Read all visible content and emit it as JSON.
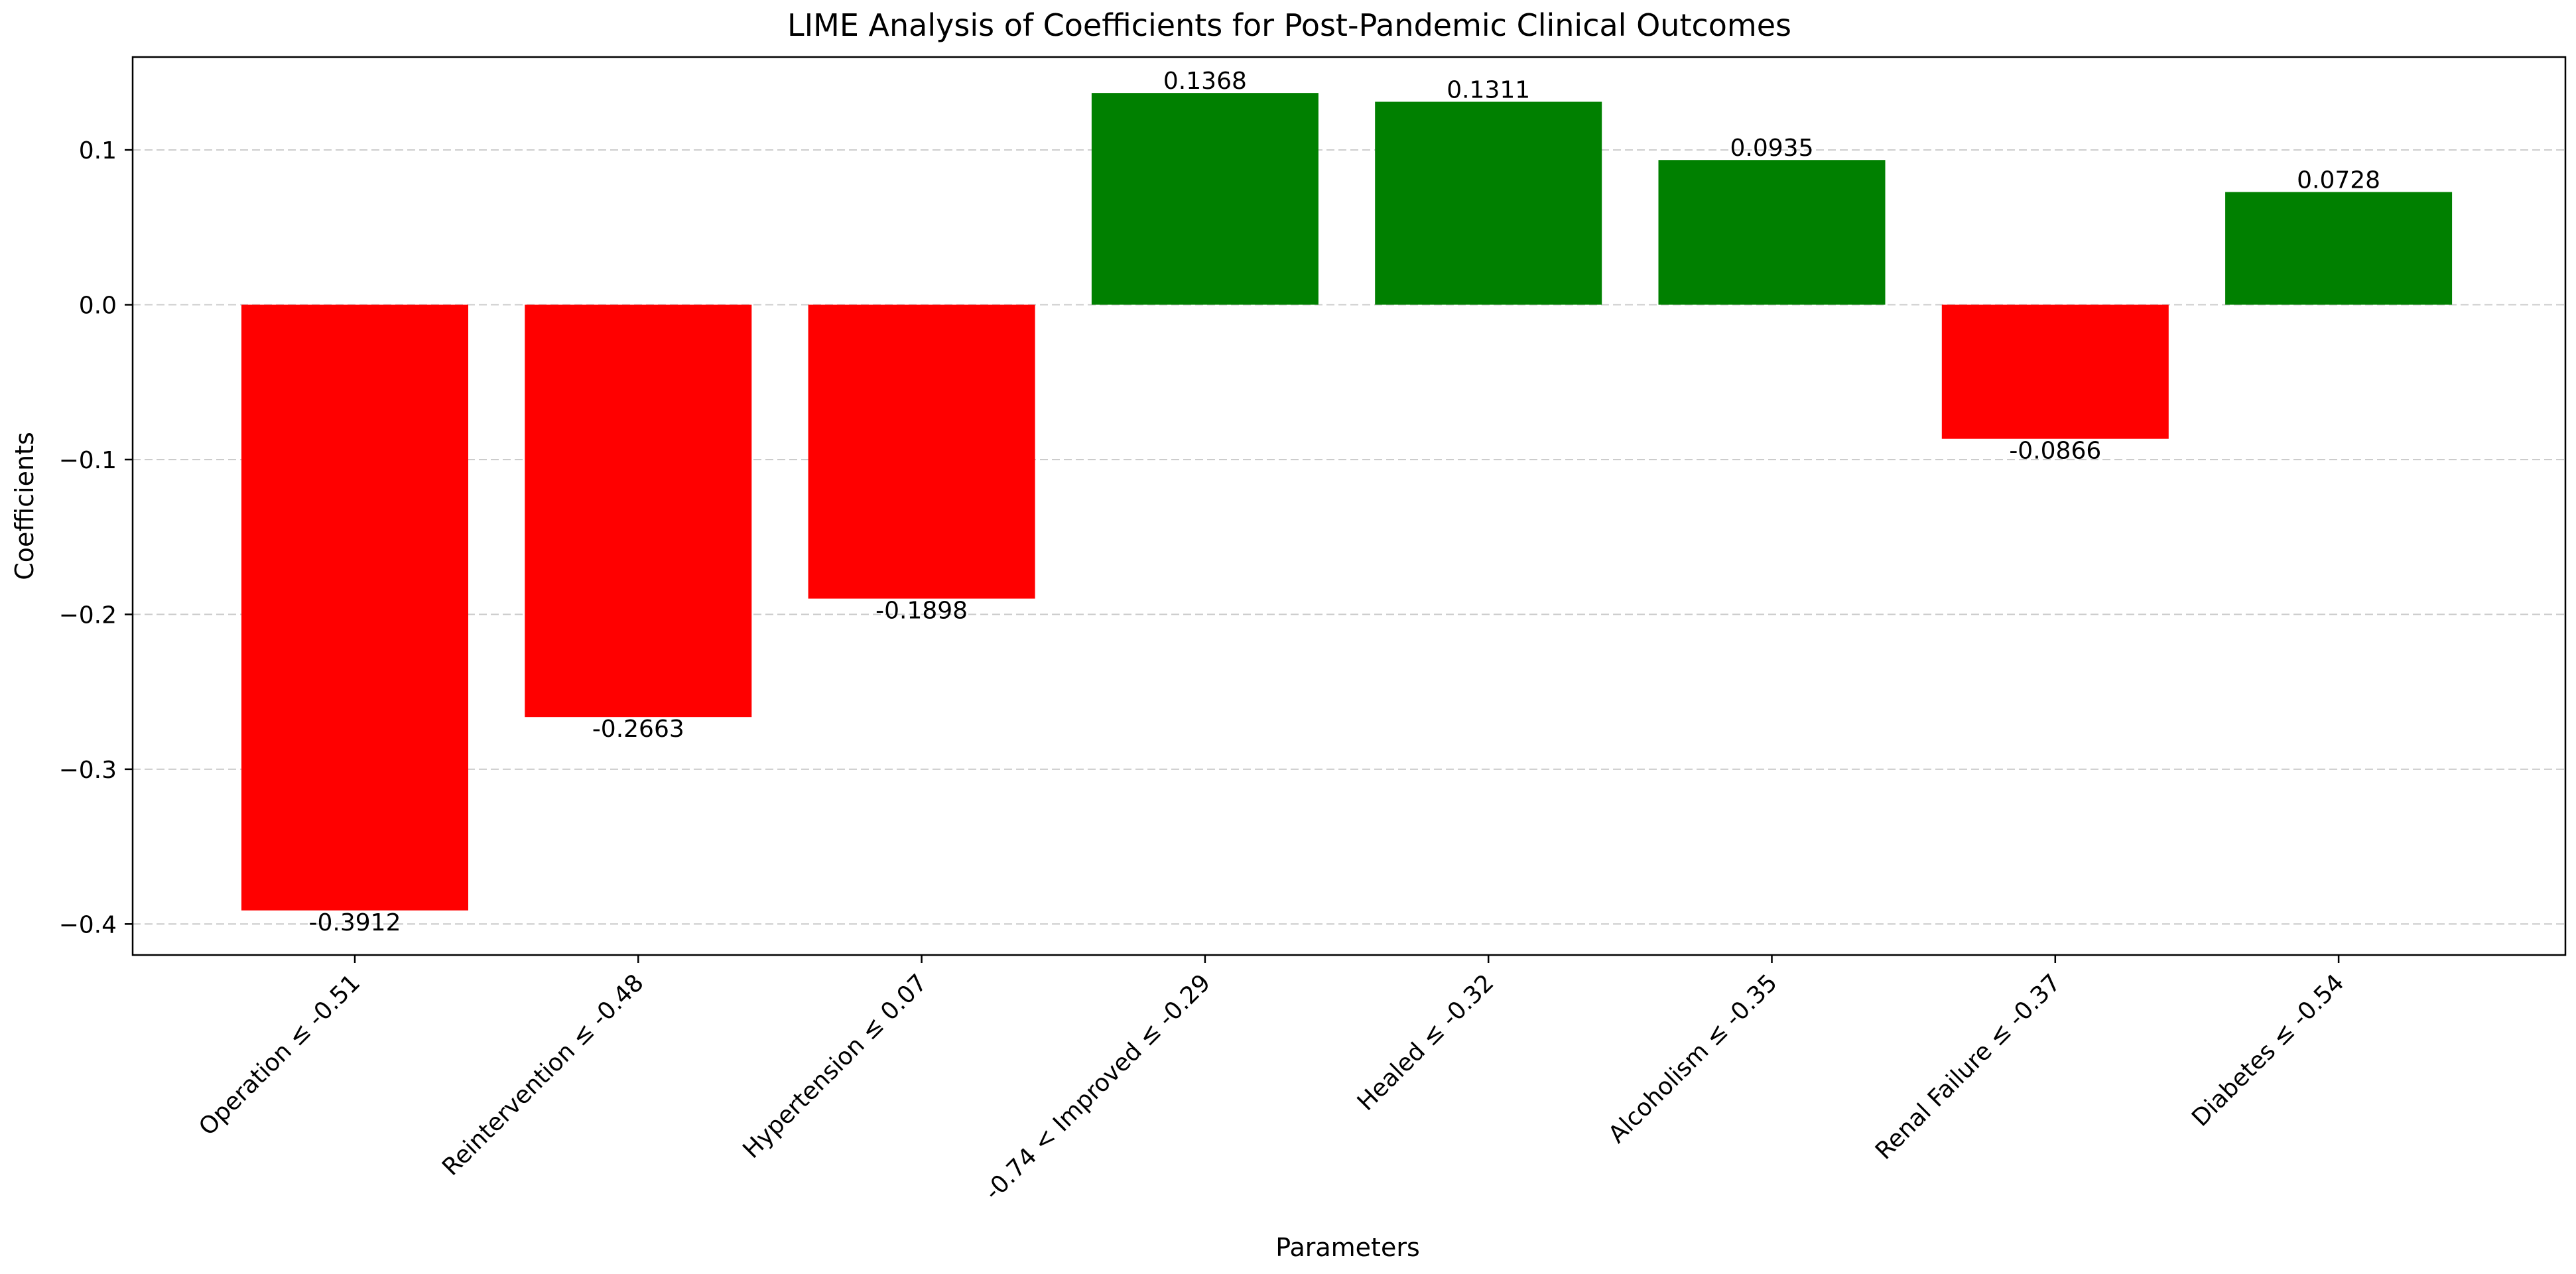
{
  "chart_data": {
    "type": "bar",
    "title": "LIME Analysis of Coefficients for Post-Pandemic Clinical Outcomes",
    "xlabel": "Parameters",
    "ylabel": "Coefficients",
    "categories": [
      "Operation ≤ -0.51",
      "Reintervention ≤ -0.48",
      "Hypertension ≤ 0.07",
      "-0.74 < Improved ≤ -0.29",
      "Healed ≤ -0.32",
      "Alcoholism ≤ -0.35",
      "Renal Failure ≤ -0.37",
      "Diabetes ≤ -0.54"
    ],
    "values": [
      -0.3912,
      -0.2663,
      -0.1898,
      0.1368,
      0.1311,
      0.0935,
      -0.0866,
      0.0728
    ],
    "value_labels": [
      "-0.3912",
      "-0.2663",
      "-0.1898",
      "0.1368",
      "0.1311",
      "0.0935",
      "-0.0866",
      "0.0728"
    ],
    "ylim": [
      -0.42,
      0.16
    ],
    "yticks": [
      0.1,
      0.0,
      -0.1,
      -0.2,
      -0.3,
      -0.4
    ],
    "ytick_labels": [
      "0.1",
      "0.0",
      "−0.1",
      "−0.2",
      "−0.3",
      "−0.4"
    ],
    "grid": "y dashed",
    "colors": {
      "positive": "#008000",
      "negative": "#ff0000",
      "grid": "#cccccc",
      "axis": "#000000"
    }
  }
}
